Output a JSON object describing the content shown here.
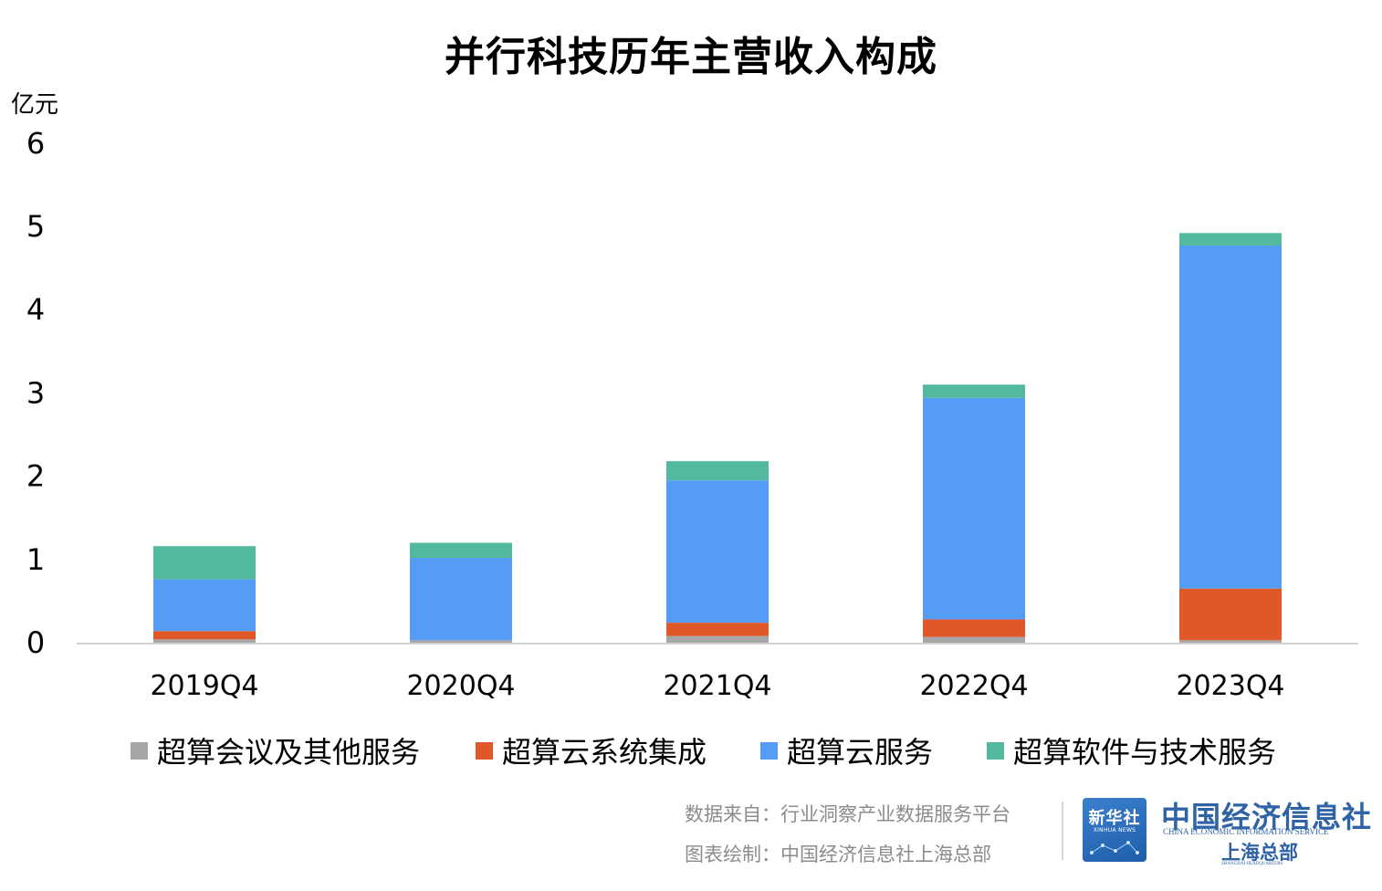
{
  "chart_data": {
    "type": "bar",
    "stacked": true,
    "title": "并行科技历年主营收入构成",
    "ylabel": "亿元",
    "categories": [
      "2019Q4",
      "2020Q4",
      "2021Q4",
      "2022Q4",
      "2023Q4"
    ],
    "yticks": [
      "0",
      "1",
      "2",
      "3",
      "4",
      "5",
      "6"
    ],
    "ylim": [
      0,
      6
    ],
    "grid": false,
    "legend_position": "bottom",
    "series": [
      {
        "name": "超算会议及其他服务",
        "color": "#a6a6a6",
        "values": [
          0.04,
          0.03,
          0.08,
          0.07,
          0.03
        ]
      },
      {
        "name": "超算云系统集成",
        "color": "#e0572a",
        "values": [
          0.1,
          0.0,
          0.16,
          0.21,
          0.62
        ]
      },
      {
        "name": "超算云服务",
        "color": "#559cf6",
        "values": [
          0.62,
          0.99,
          1.71,
          2.66,
          4.12
        ]
      },
      {
        "name": "超算软件与技术服务",
        "color": "#52b99e",
        "values": [
          0.4,
          0.18,
          0.23,
          0.16,
          0.15
        ]
      }
    ]
  },
  "footer": {
    "source": "数据来自：行业洞察产业数据服务平台",
    "credit": "图表绘制：中国经济信息社上海总部"
  },
  "branding": {
    "xinhua_zh": "新华社",
    "xinhua_en": "XINHUA NEWS",
    "ceis_zh": "中国经济信息社",
    "ceis_en": "CHINA ECONOMIC INFORMATION SERVICE",
    "ceis_sub": "上海总部",
    "ceis_sub_en": "SHANGHAI HEADQUARTERS"
  }
}
